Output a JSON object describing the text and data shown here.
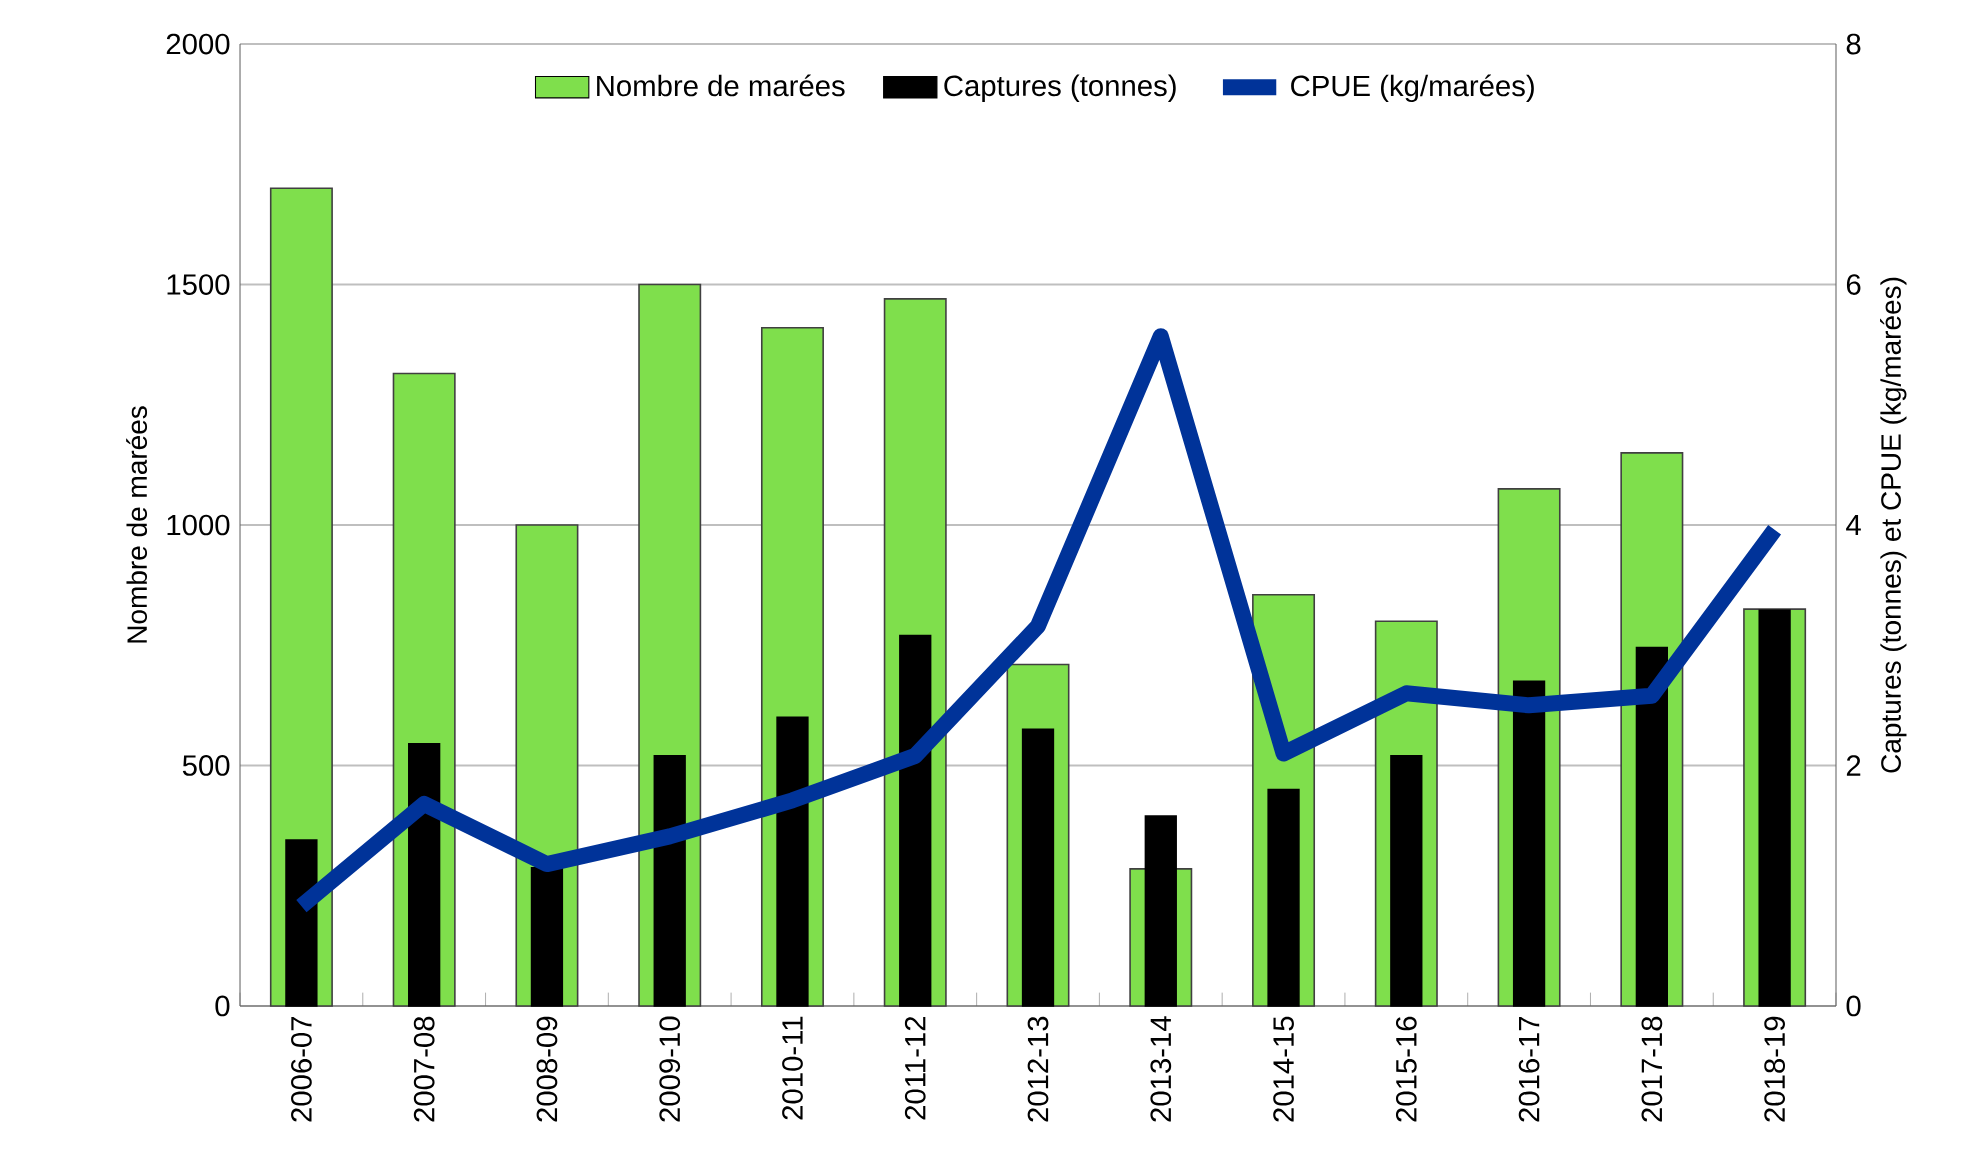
{
  "chart_data": {
    "type": "bar",
    "categories": [
      "2006-07",
      "2007-08",
      "2008-09",
      "2009-10",
      "2010-11",
      "2011-12",
      "2012-13",
      "2013-14",
      "2014-15",
      "2015-16",
      "2016-17",
      "2017-18",
      "2018-19"
    ],
    "series": [
      {
        "name": "Nombre de marées",
        "color": "#7fdf4c",
        "values": [
          1700,
          1315,
          1000,
          1500,
          1410,
          1470,
          710,
          285,
          855,
          800,
          1075,
          1150,
          825
        ]
      },
      {
        "name": "Captures (tonnes)",
        "axis": "y2",
        "color": "#000000",
        "values": [
          1.38,
          2.18,
          1.15,
          2.08,
          2.4,
          3.08,
          2.3,
          1.58,
          1.8,
          2.08,
          2.7,
          2.98,
          3.29
        ]
      },
      {
        "name": "CPUE (kg/marées)",
        "type": "line",
        "axis": "y2",
        "color": "#003399",
        "values": [
          0.83,
          1.68,
          1.18,
          1.41,
          1.71,
          2.08,
          3.16,
          5.57,
          2.1,
          2.6,
          2.5,
          2.58,
          3.96
        ]
      }
    ],
    "ylabel": "Nombre de marées",
    "y2label": "Captures (tonnes) et CPUE (kg/marées)",
    "ylim": [
      0,
      2000
    ],
    "yticks": [
      0,
      500,
      1000,
      1500,
      2000
    ],
    "y2lim": [
      0,
      8
    ],
    "y2ticks": [
      0,
      2,
      4,
      6,
      8
    ],
    "grid": "y",
    "legend": "top"
  }
}
